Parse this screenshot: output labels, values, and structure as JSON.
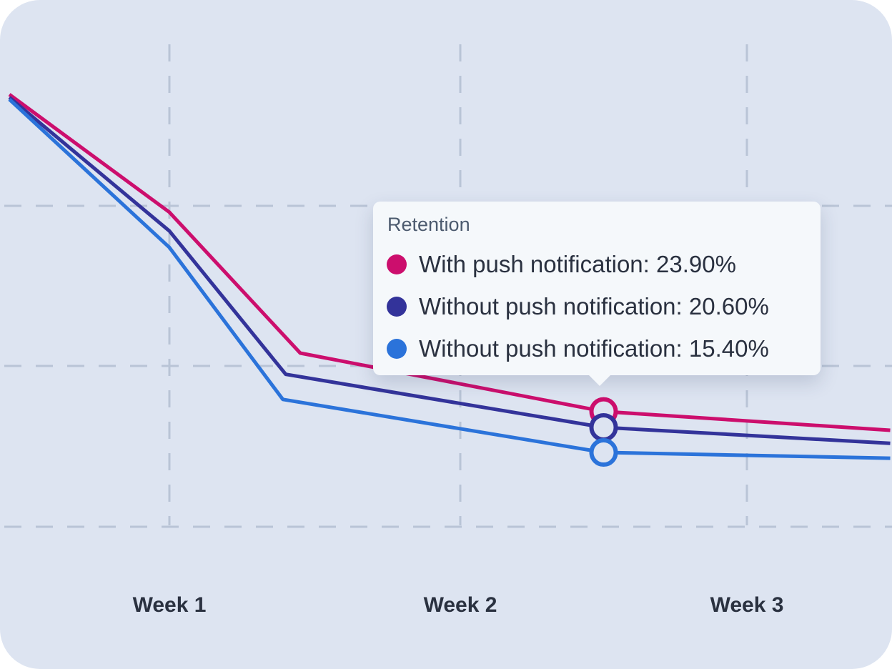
{
  "chart_data": {
    "type": "line",
    "categories": [
      "Week 1",
      "Week 2",
      "Week 3"
    ],
    "x_range": [
      0.45,
      3.5
    ],
    "y_range": [
      0,
      100
    ],
    "grid": true,
    "series": [
      {
        "name": "With push notification",
        "color": "#cc0e6d",
        "points": [
          [
            0.45,
            89.6
          ],
          [
            1.0,
            65.2
          ],
          [
            1.45,
            36.0
          ],
          [
            2.5,
            23.9
          ],
          [
            3.5,
            20.0
          ]
        ]
      },
      {
        "name": "Without push notification",
        "color": "#33339a",
        "points": [
          [
            0.45,
            89.0
          ],
          [
            1.0,
            61.3
          ],
          [
            1.4,
            31.6
          ],
          [
            2.5,
            20.6
          ],
          [
            3.5,
            17.3
          ]
        ]
      },
      {
        "name": "Without push notification",
        "color": "#2b73da",
        "points": [
          [
            0.45,
            88.6
          ],
          [
            1.0,
            57.9
          ],
          [
            1.39,
            26.4
          ],
          [
            2.5,
            15.4
          ],
          [
            3.5,
            14.2
          ]
        ]
      }
    ],
    "highlight_x": 2.5
  },
  "tooltip": {
    "title": "Retention",
    "rows": [
      {
        "label": "With push notification: 23.90%",
        "color": "#cc0e6d"
      },
      {
        "label": "Without push notification: 20.60%",
        "color": "#33339a"
      },
      {
        "label": "Without push notification: 15.40%",
        "color": "#2b73da"
      }
    ]
  }
}
